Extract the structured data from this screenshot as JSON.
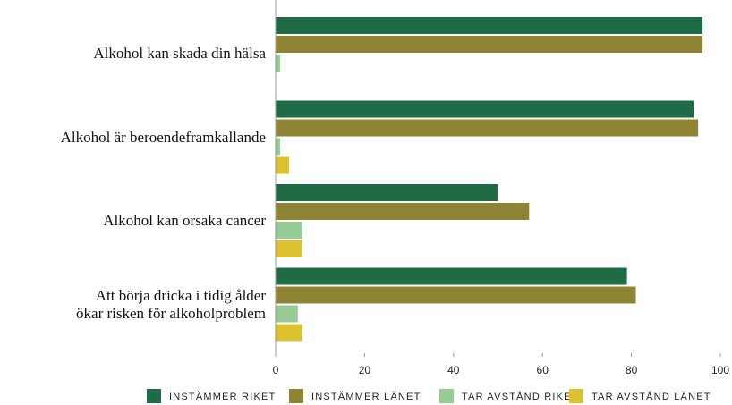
{
  "chart_data": {
    "type": "hbar",
    "categories": [
      "Alkohol kan skada din hälsa",
      "Alkohol är beroendeframkallande",
      "Alkohol kan orsaka cancer",
      "Att börja dricka i tidig ålder\nökar risken för alkoholproblem"
    ],
    "series": [
      {
        "name": "INSTÄMMER RIKET",
        "color": "#1e6b45",
        "values": [
          96,
          94,
          50,
          79
        ]
      },
      {
        "name": "INSTÄMMER LÄNET",
        "color": "#8f8434",
        "values": [
          96,
          95,
          57,
          81
        ]
      },
      {
        "name": "TAR AVSTÅND RIKET",
        "color": "#97cc97",
        "values": [
          1,
          1,
          6,
          5
        ]
      },
      {
        "name": "TAR AVSTÅND LÄNET",
        "color": "#dcc22e",
        "values": [
          0,
          3,
          6,
          6
        ]
      }
    ],
    "xlim": [
      0,
      100
    ],
    "xticks": [
      0,
      20,
      40,
      60,
      80,
      100
    ],
    "grid": false
  }
}
